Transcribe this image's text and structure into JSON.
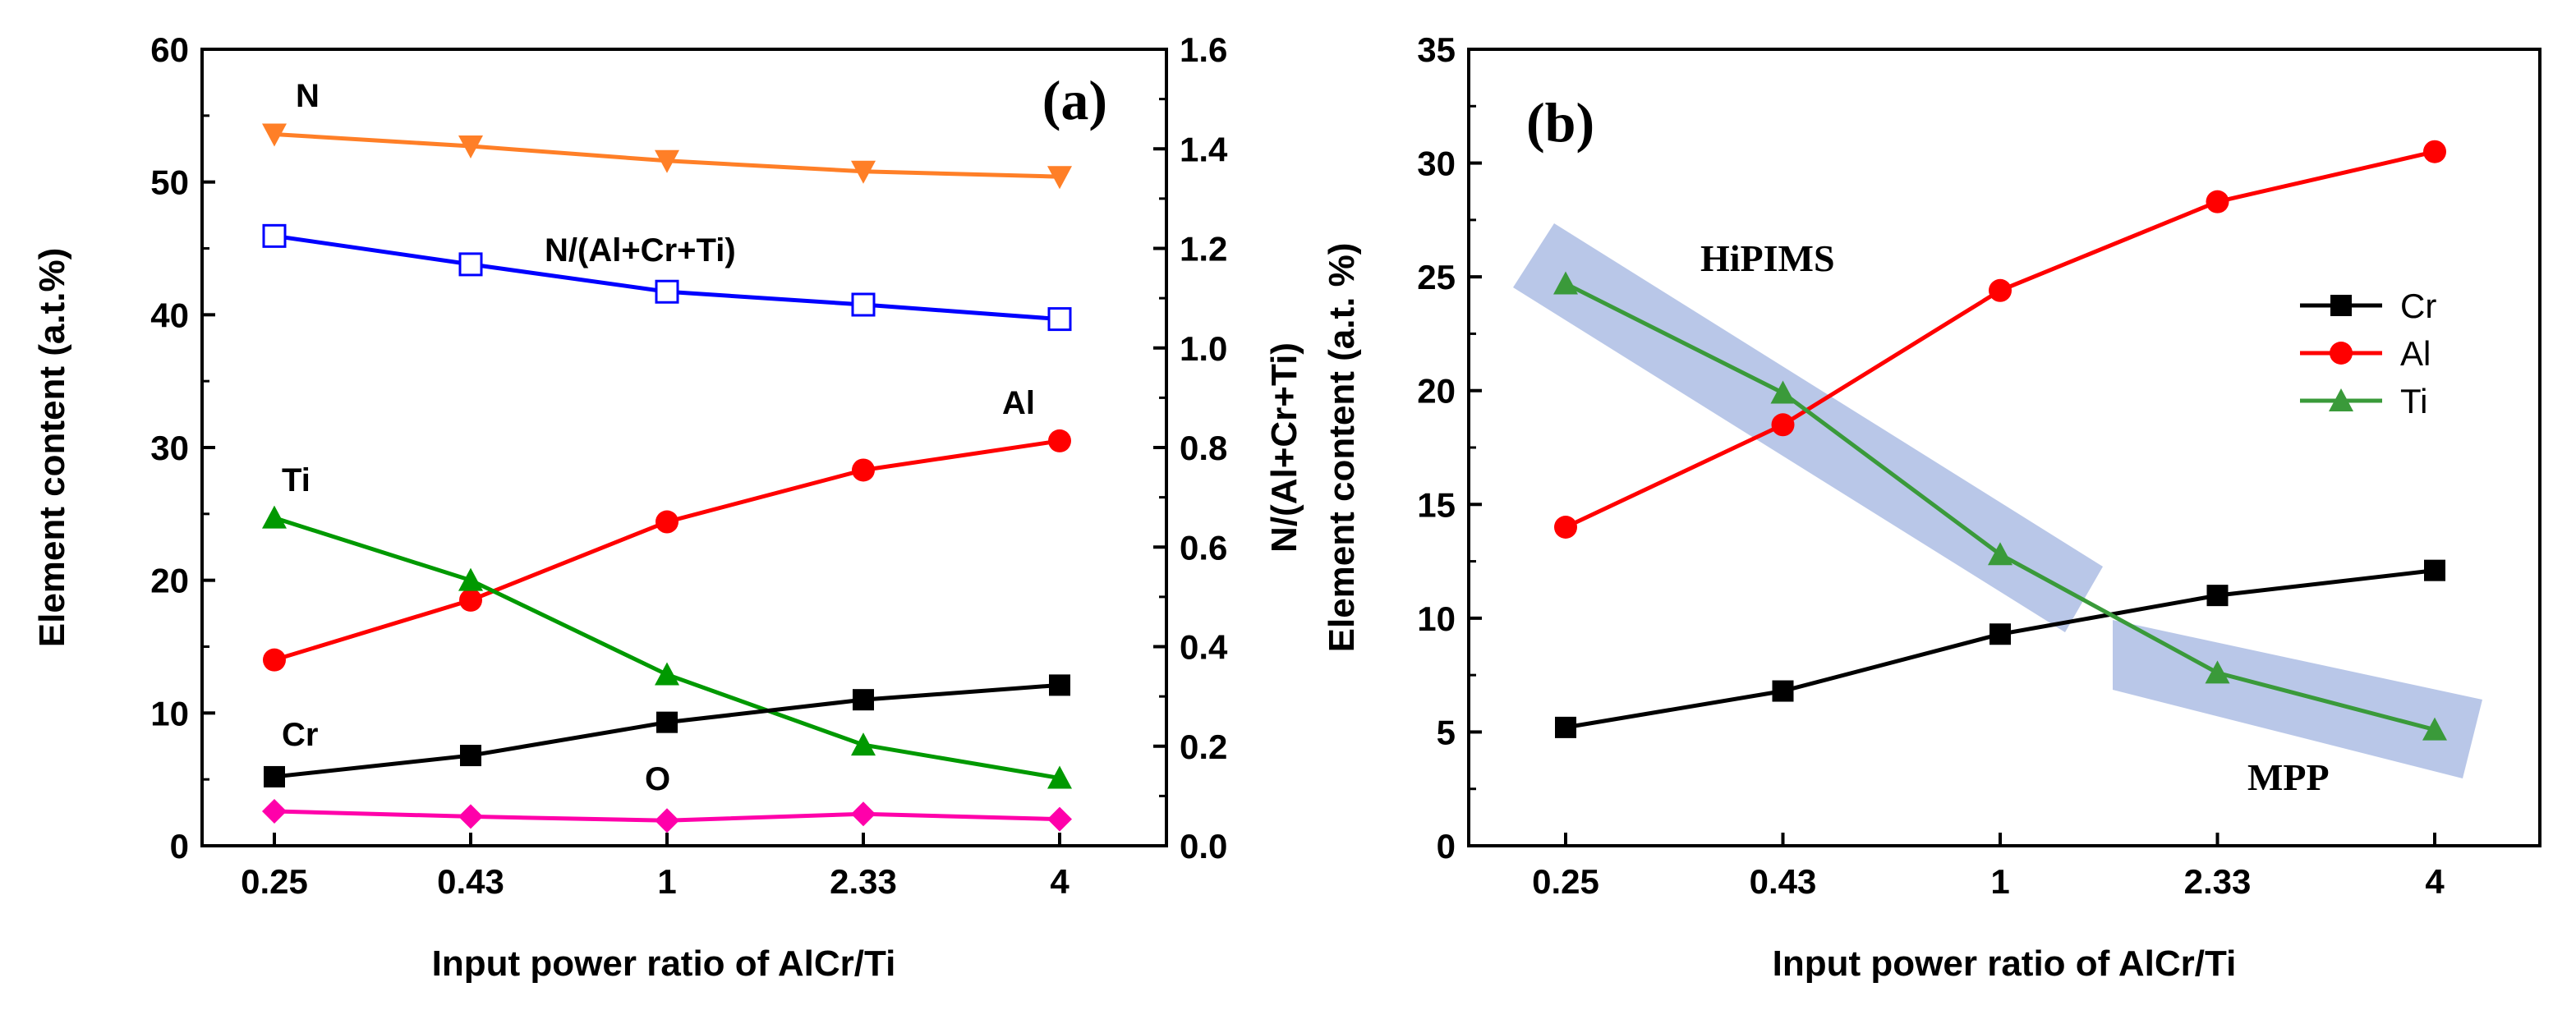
{
  "chart_data": [
    {
      "type": "line",
      "panel_label": "(a)",
      "categories": [
        "0.25",
        "0.43",
        "1",
        "2.33",
        "4"
      ],
      "xlabel": "Input power ratio of AlCr/Ti",
      "ylabel": "Element content (a.t.%)",
      "ylabel_right": "N/(Al+Cr+Ti)",
      "ylim": [
        0,
        60
      ],
      "ylim_right": [
        0,
        1.6
      ],
      "yticks": [
        "0",
        "10",
        "20",
        "30",
        "40",
        "50",
        "60"
      ],
      "yticks_right": [
        "0.0",
        "0.2",
        "0.4",
        "0.6",
        "0.8",
        "1.0",
        "1.2",
        "1.4",
        "1.6"
      ],
      "series": [
        {
          "name": "N",
          "label": "N",
          "axis": "left",
          "color": "#ff7f27",
          "marker": "triangle-down",
          "values": [
            53.6,
            52.7,
            51.6,
            50.8,
            50.4
          ]
        },
        {
          "name": "N/(Al+Cr+Ti)",
          "label": "N/(Al+Cr+Ti)",
          "axis": "right",
          "color": "#0000ff",
          "marker": "square-open",
          "values": [
            1.225,
            1.168,
            1.113,
            1.087,
            1.058
          ]
        },
        {
          "name": "Al",
          "label": "Al",
          "axis": "left",
          "color": "#ff0000",
          "marker": "circle",
          "values": [
            14.0,
            18.5,
            24.4,
            28.3,
            30.5
          ]
        },
        {
          "name": "Ti",
          "label": "Ti",
          "axis": "left",
          "color": "#009900",
          "marker": "triangle-up",
          "values": [
            24.7,
            20.0,
            12.9,
            7.6,
            5.1
          ]
        },
        {
          "name": "Cr",
          "label": "Cr",
          "axis": "left",
          "color": "#000000",
          "marker": "square",
          "values": [
            5.2,
            6.8,
            9.3,
            11.0,
            12.1
          ]
        },
        {
          "name": "O",
          "label": "O",
          "axis": "left",
          "color": "#ff00aa",
          "marker": "diamond",
          "values": [
            2.6,
            2.2,
            1.9,
            2.4,
            2.0
          ]
        }
      ]
    },
    {
      "type": "line",
      "panel_label": "(b)",
      "categories": [
        "0.25",
        "0.43",
        "1",
        "2.33",
        "4"
      ],
      "xlabel": "Input power ratio of AlCr/Ti",
      "ylabel": "Element content (a.t. %)",
      "ylim": [
        0,
        35
      ],
      "yticks": [
        "0",
        "5",
        "10",
        "15",
        "20",
        "25",
        "30",
        "35"
      ],
      "legend_position": "right",
      "series": [
        {
          "name": "Cr",
          "color": "#000000",
          "marker": "square",
          "values": [
            5.2,
            6.8,
            9.3,
            11.0,
            12.1
          ]
        },
        {
          "name": "Al",
          "color": "#ff0000",
          "marker": "circle",
          "values": [
            14.0,
            18.5,
            24.4,
            28.3,
            30.5
          ]
        },
        {
          "name": "Ti",
          "color": "#3a9a3a",
          "marker": "triangle-up",
          "values": [
            24.7,
            19.9,
            12.8,
            7.6,
            5.1
          ]
        }
      ],
      "annotations": [
        "HiPIMS",
        "MPP"
      ]
    }
  ]
}
